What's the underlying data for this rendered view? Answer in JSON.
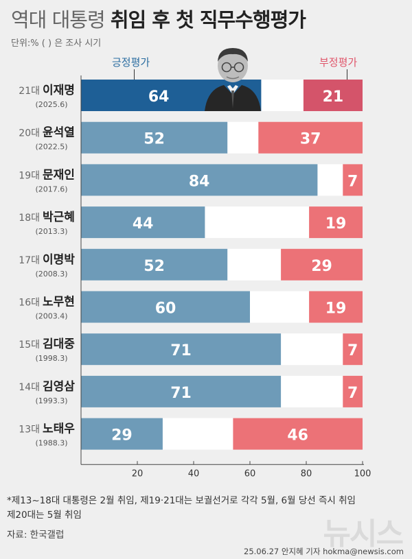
{
  "title": {
    "light": "역대 대통령",
    "bold": "취임 후 첫 직무수행평가"
  },
  "unit_note": "단위:% ( ) 은 조사 시기",
  "legend": {
    "positive": "긍정평가",
    "negative": "부정평가"
  },
  "colors": {
    "positive_highlight": "#1e5f96",
    "negative_highlight": "#d4546a",
    "positive": "#6e9bb8",
    "negative": "#ec7277",
    "neutral": "#ffffff"
  },
  "chart_data": {
    "type": "bar",
    "orientation": "horizontal",
    "stacked": true,
    "title": "역대 대통령 취임 후 첫 직무수행평가",
    "unit": "%",
    "xlim": [
      0,
      100
    ],
    "xticks": [
      20,
      40,
      60,
      80,
      100
    ],
    "categories": [
      {
        "term": "21대",
        "name": "이재명",
        "date": "(2025.6)"
      },
      {
        "term": "20대",
        "name": "윤석열",
        "date": "(2022.5)"
      },
      {
        "term": "19대",
        "name": "문재인",
        "date": "(2017.6)"
      },
      {
        "term": "18대",
        "name": "박근혜",
        "date": "(2013.3)"
      },
      {
        "term": "17대",
        "name": "이명박",
        "date": "(2008.3)"
      },
      {
        "term": "16대",
        "name": "노무현",
        "date": "(2003.4)"
      },
      {
        "term": "15대",
        "name": "김대중",
        "date": "(1998.3)"
      },
      {
        "term": "14대",
        "name": "김영삼",
        "date": "(1993.3)"
      },
      {
        "term": "13대",
        "name": "노태우",
        "date": "(1988.3)"
      }
    ],
    "series": [
      {
        "name": "긍정평가",
        "values": [
          64,
          52,
          84,
          44,
          52,
          60,
          71,
          71,
          29
        ]
      },
      {
        "name": "부정평가",
        "values": [
          21,
          37,
          7,
          19,
          29,
          19,
          7,
          7,
          46
        ]
      }
    ]
  },
  "notes": [
    "*제13~18대 대통령은 2월 취임, 제19·21대는 보궐선거로 각각 5월, 6월 당선 즉시 취임",
    "제20대는 5월 취임"
  ],
  "source": "자료:  한국갤럽",
  "logo": "뉴시스",
  "credit": "25.06.27 안지혜 기자 hokma@newsis.com"
}
